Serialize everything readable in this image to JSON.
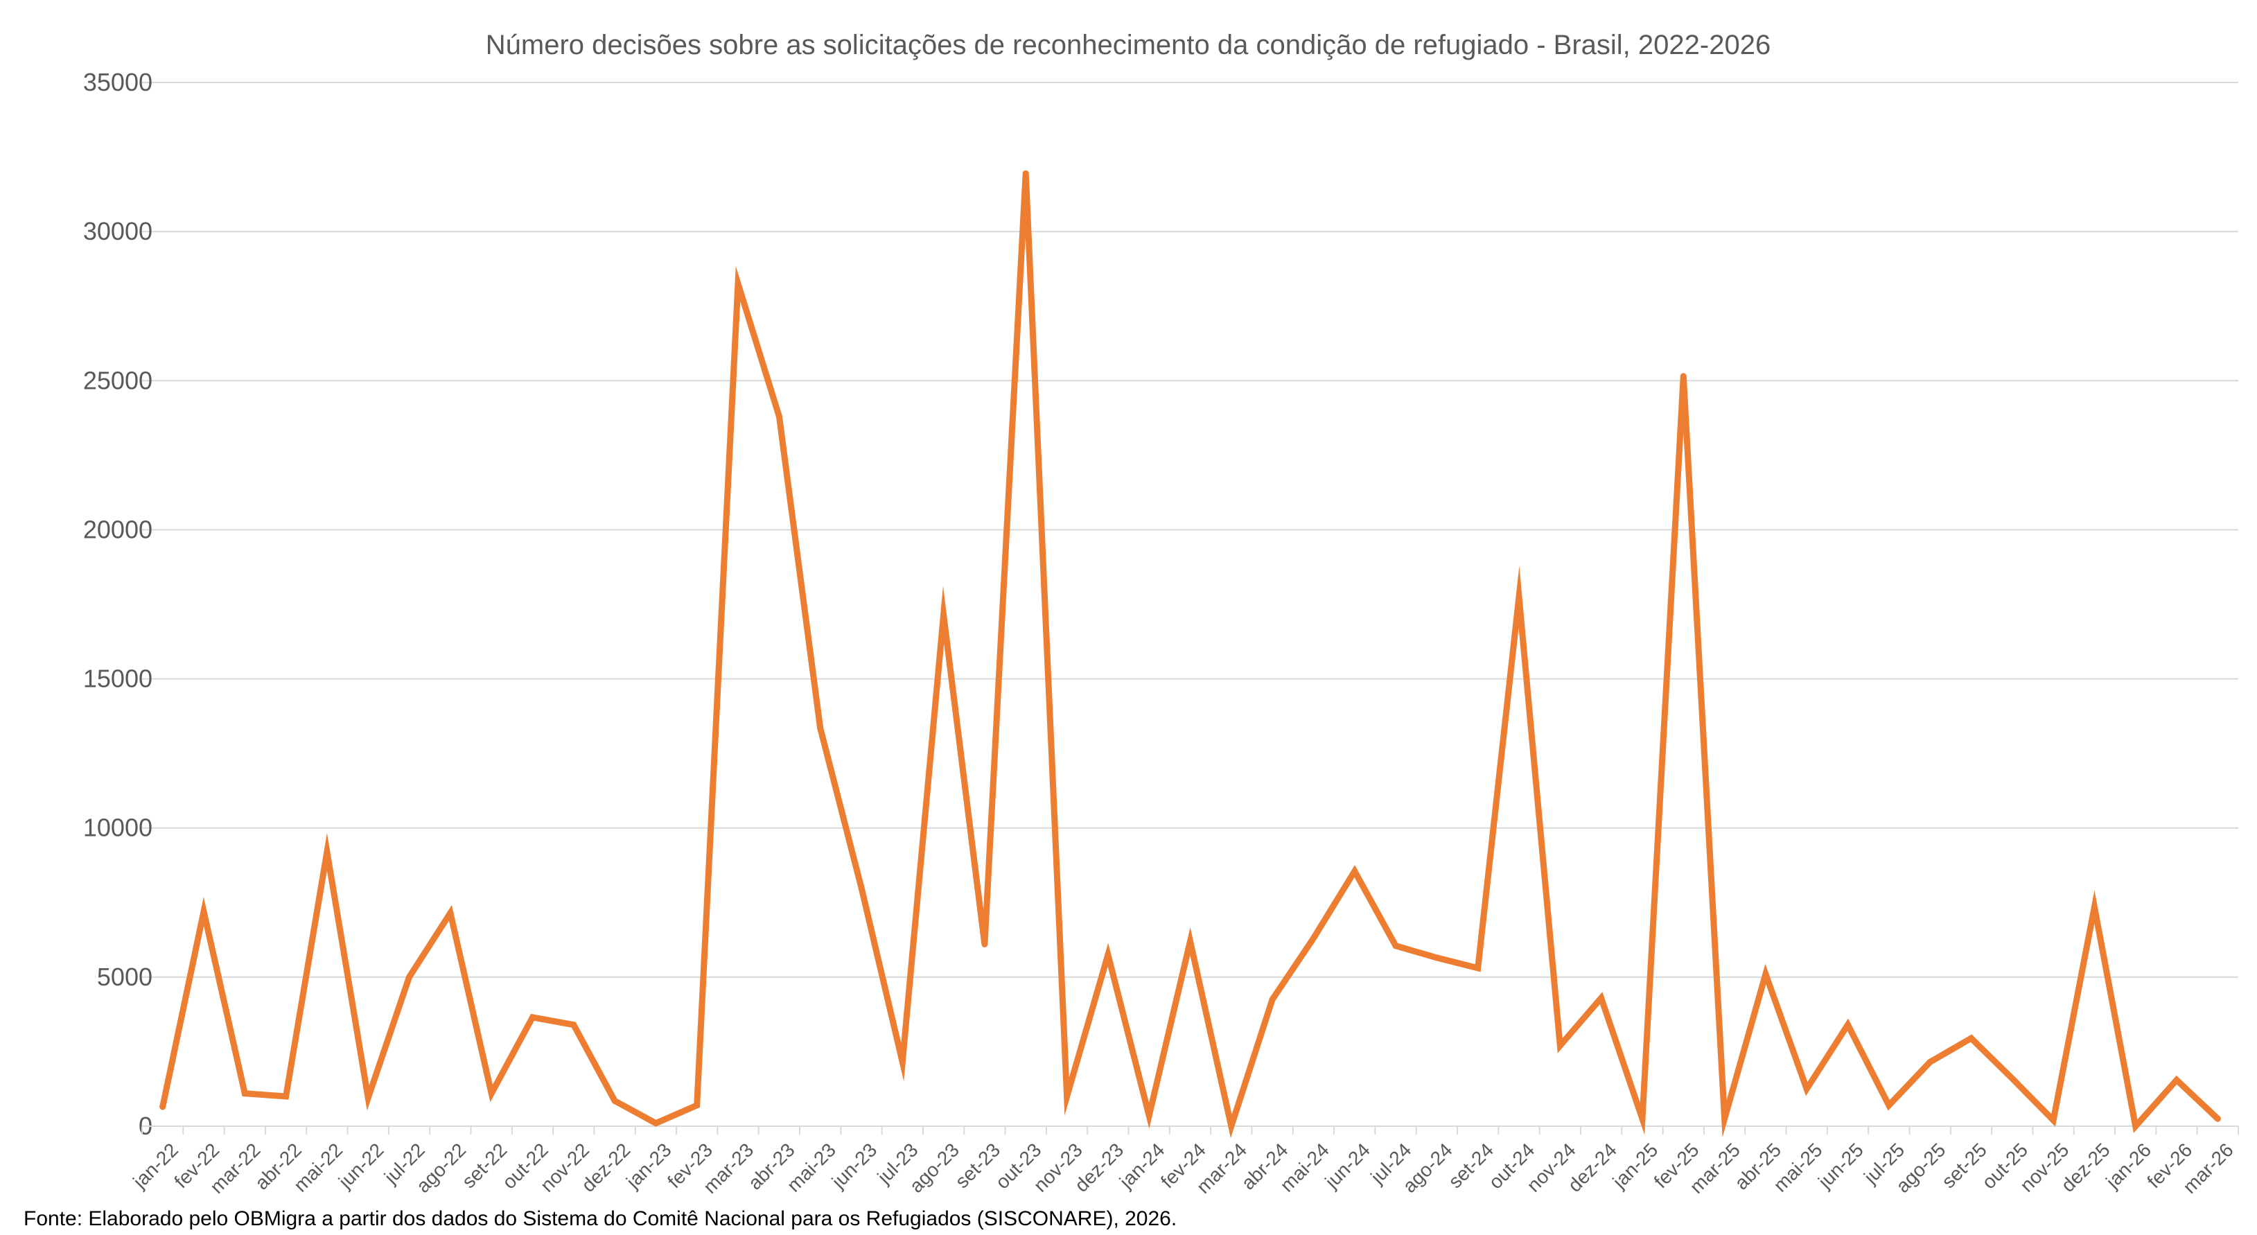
{
  "chart_data": {
    "type": "line",
    "title": "Número decisões sobre as solicitações de reconhecimento da condição de refugiado - Brasil, 2022-2026",
    "xlabel": "",
    "ylabel": "",
    "ylim": [
      0,
      35000
    ],
    "yticks": [
      0,
      5000,
      10000,
      15000,
      20000,
      25000,
      30000,
      35000
    ],
    "grid": true,
    "legend": "none",
    "categories": [
      "jan-22",
      "fev-22",
      "mar-22",
      "abr-22",
      "mai-22",
      "jun-22",
      "jul-22",
      "ago-22",
      "set-22",
      "out-22",
      "nov-22",
      "dez-22",
      "jan-23",
      "fev-23",
      "mar-23",
      "abr-23",
      "mai-23",
      "jun-23",
      "jul-23",
      "ago-23",
      "set-23",
      "out-23",
      "nov-23",
      "dez-23",
      "jan-24",
      "fev-24",
      "mar-24",
      "abr-24",
      "mai-24",
      "jun-24",
      "jul-24",
      "ago-24",
      "set-24",
      "out-24",
      "nov-24",
      "dez-24",
      "jan-25",
      "fev-25",
      "mar-25",
      "abr-25",
      "mai-25",
      "jun-25",
      "jul-25",
      "ago-25",
      "set-25",
      "out-25",
      "nov-25",
      "dez-25",
      "jan-26",
      "fev-26",
      "mar-26"
    ],
    "series": [
      {
        "color": "#ED7D31",
        "values": [
          650,
          7200,
          1100,
          1000,
          9200,
          950,
          5000,
          7150,
          1100,
          3650,
          3400,
          850,
          100,
          700,
          28250,
          23800,
          13350,
          8000,
          2150,
          17150,
          6100,
          31950,
          1000,
          5750,
          350,
          6200,
          0,
          4250,
          6300,
          8550,
          6050,
          5650,
          5300,
          17750,
          2700,
          4300,
          250,
          25150,
          250,
          5100,
          1250,
          3400,
          700,
          2150,
          2950,
          1600,
          200,
          7350,
          0,
          1550,
          250
        ]
      }
    ],
    "source": "Fonte: Elaborado pelo OBMigra a partir dos dados  do Sistema do Comitê Nacional para os Refugiados (SISCONARE), 2026."
  }
}
